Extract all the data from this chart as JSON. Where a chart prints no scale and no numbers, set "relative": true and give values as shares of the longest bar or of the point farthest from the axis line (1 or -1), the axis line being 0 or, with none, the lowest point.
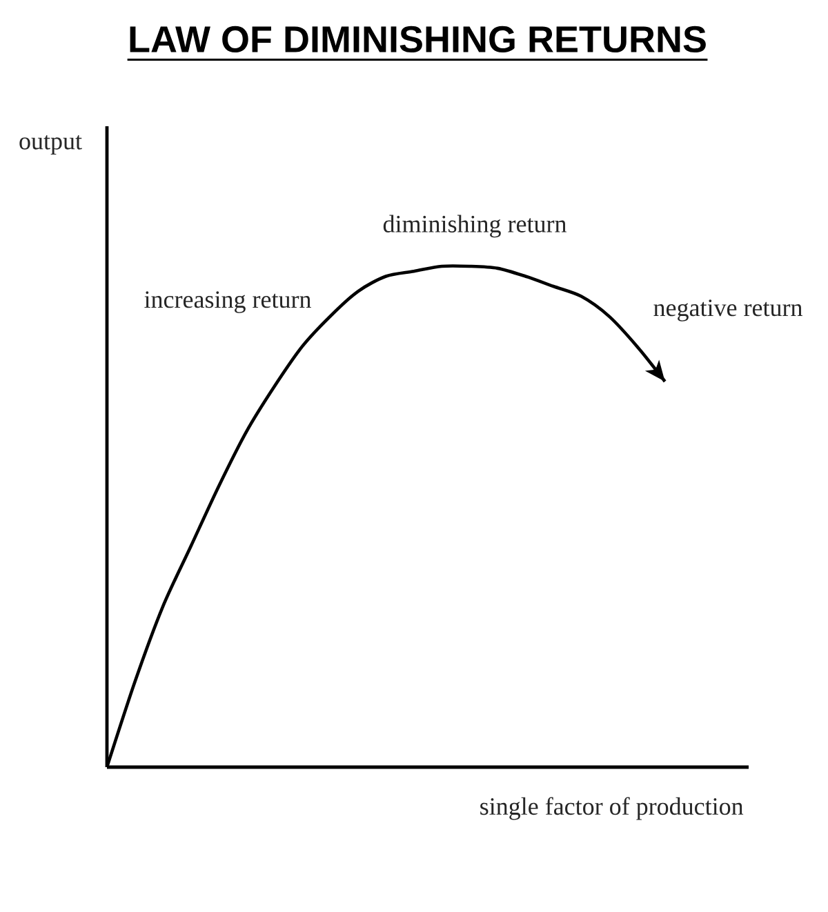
{
  "chart_data": {
    "type": "line",
    "title": "LAW OF DIMINISHING RETURNS",
    "xlabel": "single factor of production",
    "ylabel": "output",
    "relative": true,
    "marker": "none",
    "line_style": "solid",
    "categories": [
      null,
      null,
      null,
      null,
      null,
      null,
      null,
      null,
      null,
      null,
      null,
      null,
      null,
      null,
      null,
      null,
      null,
      null,
      null,
      null,
      null,
      null,
      null,
      null
    ],
    "series": [
      {
        "color": "#000000",
        "values": [
          0,
          0.17,
          0.32,
          0.44,
          0.56,
          0.67,
          0.76,
          0.84,
          0.9,
          0.95,
          0.98,
          0.99,
          1.0,
          1.0,
          0.996,
          0.98,
          0.96,
          0.94,
          0.9,
          0.84,
          0.77,
          null,
          null,
          null
        ]
      }
    ],
    "annotations": [
      "increasing return",
      "diminishing return",
      "negative return"
    ]
  }
}
